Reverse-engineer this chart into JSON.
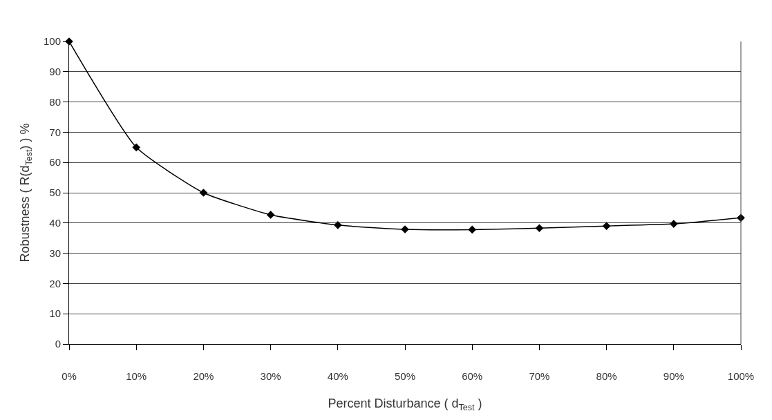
{
  "chart_data": {
    "type": "line",
    "xlabel": "Percent Disturbance ( d$_{Test}$ )",
    "ylabel": "Robustness ( R(d$_{Test}$) ) %",
    "categories": [
      "0%",
      "10%",
      "20%",
      "30%",
      "40%",
      "50%",
      "60%",
      "70%",
      "80%",
      "90%",
      "100%"
    ],
    "series": [
      {
        "color": "#000000",
        "values": [
          100,
          65,
          50,
          42.7,
          39.3,
          37.9,
          37.8,
          38.3,
          39,
          39.7,
          41.7
        ]
      }
    ],
    "ylim": [
      0,
      100
    ],
    "yticks": [
      0,
      10,
      20,
      30,
      40,
      50,
      60,
      70,
      80,
      90,
      100
    ],
    "grid": "y",
    "legend": false,
    "marker": "diamond",
    "line_style": "solid"
  }
}
